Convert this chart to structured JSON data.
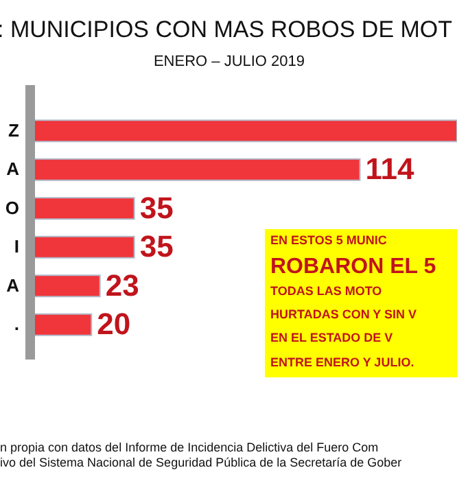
{
  "chart_data": {
    "type": "bar",
    "orientation": "horizontal",
    "title": ": MUNICIPIOS CON MAS ROBOS DE MOT",
    "subtitle": "ENERO – JULIO 2019",
    "categories": [
      "Z",
      "A",
      "O",
      "I",
      "A",
      "."
    ],
    "values": [
      148,
      114,
      35,
      35,
      23,
      20
    ],
    "value_labels": [
      null,
      "114",
      "35",
      "35",
      "23",
      "20"
    ],
    "color": "#f0353b",
    "xlim": [
      0,
      148
    ],
    "annotations": [
      "EN ESTOS 5 MUNIC",
      "ROBARON EL 5",
      "TODAS LAS MOTO",
      "HURTADAS CON Y SIN V",
      "EN EL ESTADO DE V",
      "ENTRE ENERO Y JULIO.",
      "n propia con datos del Informe de Incidencia Delictiva del Fuero Com",
      "ivo del Sistema Nacional de Seguridad Pública de la Secretaría de Gober"
    ]
  }
}
